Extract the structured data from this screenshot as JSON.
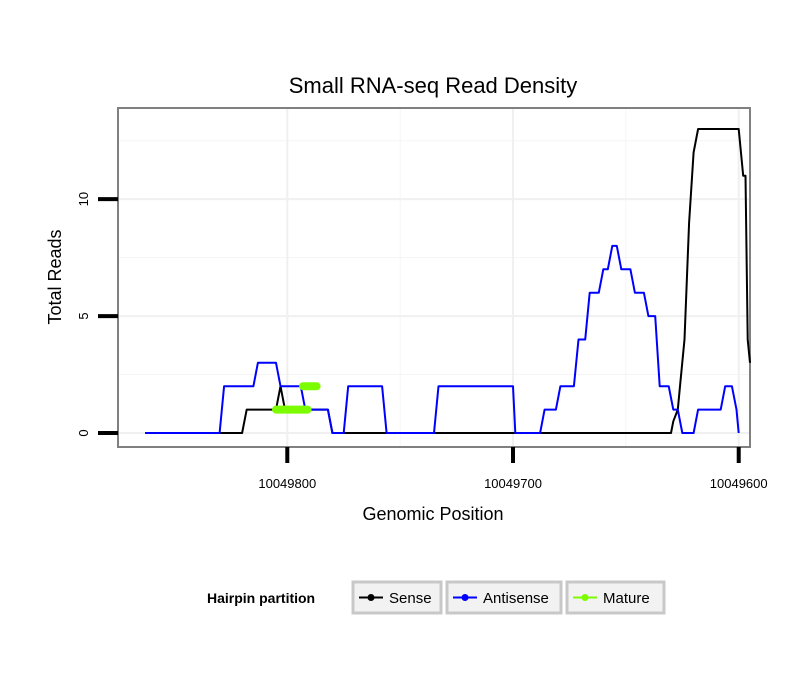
{
  "chart_data": {
    "type": "line",
    "title": "Small RNA-seq Read Density",
    "xlabel": "Genomic Position",
    "ylabel": "Total Reads",
    "x_reversed": true,
    "xlim": [
      10049875,
      10049595
    ],
    "ylim": [
      -0.6,
      13.9
    ],
    "x_ticks": [
      10049800,
      10049700,
      10049600
    ],
    "x_tick_labels": [
      "10049800",
      "10049700",
      "10049600"
    ],
    "y_ticks": [
      0,
      5,
      10
    ],
    "y_tick_labels": [
      "0",
      "5",
      "10"
    ],
    "x_minor_gridlines": [
      10049750,
      10049650
    ],
    "y_minor_gridlines": [
      2.5,
      7.5,
      12.5
    ],
    "legend": {
      "title": "Hairpin partition",
      "position": "bottom",
      "items": [
        {
          "label": "Sense",
          "color": "#000000"
        },
        {
          "label": "Antisense",
          "color": "#0000ff"
        },
        {
          "label": "Mature",
          "color": "#7cfc00"
        }
      ]
    },
    "series": [
      {
        "name": "Sense",
        "color": "#000000",
        "x": [
          10049863,
          10049820,
          10049818,
          10049814,
          10049805,
          10049803,
          10049801,
          10049796,
          10049782,
          10049780,
          10049763,
          10049732,
          10049700,
          10049630,
          10049629,
          10049627,
          10049626,
          10049624,
          10049622,
          10049620,
          10049618,
          10049616,
          10049614,
          10049600,
          10049598,
          10049597,
          10049596,
          10049595
        ],
        "y": [
          0,
          0,
          1,
          1,
          1,
          2,
          1,
          1,
          1,
          0,
          0,
          0,
          0,
          0,
          0.5,
          1,
          2,
          4,
          9,
          12,
          13,
          13,
          13,
          13,
          11,
          11,
          4,
          3
        ]
      },
      {
        "name": "Antisense",
        "color": "#0000ff",
        "x": [
          10049863,
          10049830,
          10049828,
          10049815,
          10049813,
          10049805,
          10049803,
          10049794,
          10049792,
          10049782,
          10049780,
          10049775,
          10049773,
          10049758,
          10049756,
          10049735,
          10049733,
          10049700,
          10049699,
          10049688,
          10049686,
          10049681,
          10049679,
          10049673,
          10049671,
          10049668,
          10049666,
          10049662,
          10049660,
          10049658,
          10049656,
          10049654,
          10049652,
          10049648,
          10049646,
          10049642,
          10049640,
          10049637,
          10049635,
          10049631,
          10049629,
          10049627,
          10049625,
          10049620,
          10049618,
          10049608,
          10049606,
          10049603,
          10049601,
          10049600
        ],
        "y": [
          0,
          0,
          2,
          2,
          3,
          3,
          2,
          2,
          1,
          1,
          0,
          0,
          2,
          2,
          0,
          0,
          2,
          2,
          0,
          0,
          1,
          1,
          2,
          2,
          4,
          4,
          6,
          6,
          7,
          7,
          8,
          8,
          7,
          7,
          6,
          6,
          5,
          5,
          2,
          2,
          1,
          1,
          0,
          0,
          1,
          1,
          2,
          2,
          1,
          0
        ]
      },
      {
        "name": "Mature",
        "color": "#7cfc00",
        "segments": [
          {
            "x": [
              10049805,
              10049791
            ],
            "y": [
              1,
              1
            ]
          },
          {
            "x": [
              10049793,
              10049787
            ],
            "y": [
              2,
              2
            ]
          }
        ]
      }
    ]
  }
}
